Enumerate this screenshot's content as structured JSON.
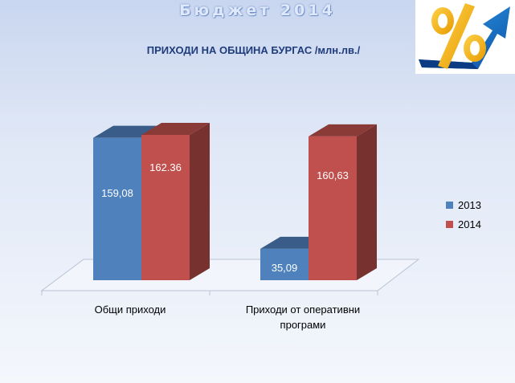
{
  "header": {
    "title": "Бюджет 2014"
  },
  "logo": {
    "icon": "percent-arrow-icon"
  },
  "chart_data": {
    "type": "bar",
    "title": "ПРИХОДИ НА ОБЩИНА БУРГАС /млн.лв./",
    "categories": [
      "Общи приходи",
      "Приходи от оперативни програми"
    ],
    "series": [
      {
        "name": "2013",
        "values": [
          159.08,
          35.09
        ],
        "labels": [
          "159,08",
          "35,09"
        ],
        "color": "#4f81bd"
      },
      {
        "name": "2014",
        "values": [
          162.36,
          160.63
        ],
        "labels": [
          "162.36",
          "160,63"
        ],
        "color": "#c0504d"
      }
    ],
    "legend_position": "right",
    "grid": false,
    "three_d": true
  }
}
